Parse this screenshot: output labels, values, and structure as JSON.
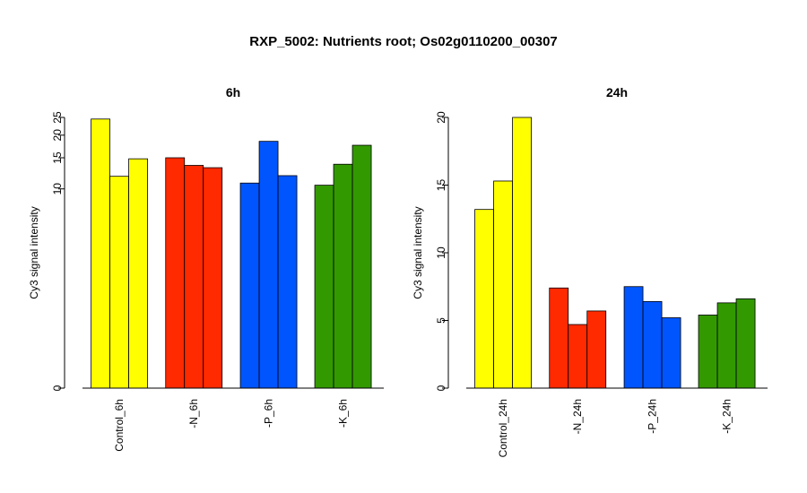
{
  "title": "RXP_5002: Nutrients root; Os02g0110200_00307",
  "colors": {
    "control": "#ffff00",
    "N": "#ff2a00",
    "P": "#0055ff",
    "K": "#339900"
  },
  "chart_data": [
    {
      "type": "bar",
      "title": "6h",
      "ylabel": "Cy3 signal intensity",
      "ylim": [
        0,
        25
      ],
      "yticks": [
        0,
        10,
        15,
        20,
        25
      ],
      "y_scale": "log(y+1)",
      "grid": false,
      "legend": "none",
      "categories": [
        "Control_6h",
        "-N_6h",
        "-P_6h",
        "-K_6h"
      ],
      "group_colors": [
        "#ffff00",
        "#ff2a00",
        "#0055ff",
        "#339900"
      ],
      "values": [
        [
          24.5,
          11.8,
          14.8
        ],
        [
          15.0,
          13.6,
          13.2
        ],
        [
          10.8,
          18.5,
          11.9
        ],
        [
          10.5,
          13.8,
          17.6
        ]
      ]
    },
    {
      "type": "bar",
      "title": "24h",
      "ylabel": "Cy3 signal intensity",
      "ylim": [
        0,
        20
      ],
      "yticks": [
        0,
        5,
        10,
        15,
        20
      ],
      "y_scale": "linear",
      "grid": false,
      "legend": "none",
      "categories": [
        "Control_24h",
        "-N_24h",
        "-P_24h",
        "-K_24h"
      ],
      "group_colors": [
        "#ffff00",
        "#ff2a00",
        "#0055ff",
        "#339900"
      ],
      "values": [
        [
          13.2,
          15.3,
          20.0
        ],
        [
          7.4,
          4.7,
          5.7
        ],
        [
          7.5,
          6.4,
          5.2
        ],
        [
          5.4,
          6.3,
          6.6
        ]
      ]
    }
  ]
}
